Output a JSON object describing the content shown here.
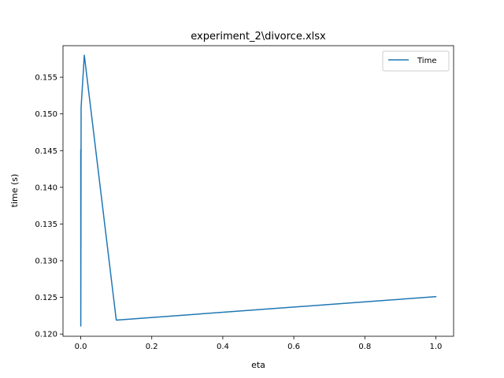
{
  "chart_data": {
    "type": "line",
    "title": "experiment_2\\divorce.xlsx",
    "xlabel": "eta",
    "ylabel": "time (s)",
    "xlim": [
      -0.05,
      1.05
    ],
    "ylim": [
      0.1197,
      0.1593
    ],
    "xticks": [
      0.0,
      0.2,
      0.4,
      0.6,
      0.8,
      1.0
    ],
    "xtick_labels": [
      "0.0",
      "0.2",
      "0.4",
      "0.6",
      "0.8",
      "1.0"
    ],
    "yticks": [
      0.12,
      0.125,
      0.13,
      0.135,
      0.14,
      0.145,
      0.15,
      0.155
    ],
    "ytick_labels": [
      "0.120",
      "0.125",
      "0.130",
      "0.135",
      "0.140",
      "0.145",
      "0.150",
      "0.155"
    ],
    "grid": false,
    "legend_position": "top-right",
    "series": [
      {
        "name": "Time",
        "color": "#1f77b4",
        "x": [
          0.0,
          0.0001,
          0.001,
          0.01,
          0.1,
          1.0
        ],
        "y": [
          0.1451,
          0.1211,
          0.1509,
          0.158,
          0.1219,
          0.1251
        ]
      }
    ]
  }
}
